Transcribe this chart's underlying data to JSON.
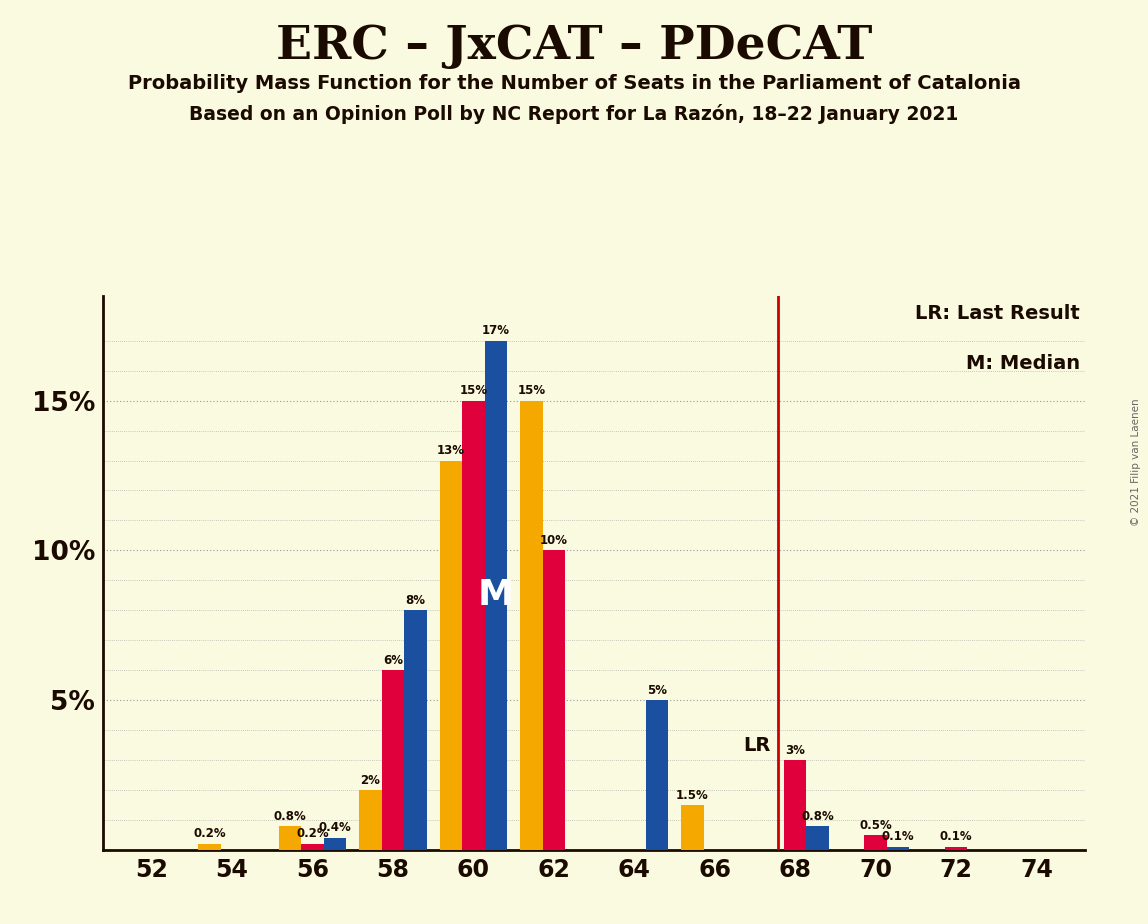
{
  "title": "ERC – JxCAT – PDeCAT",
  "subtitle1": "Probability Mass Function for the Number of Seats in the Parliament of Catalonia",
  "subtitle2": "Based on an Opinion Poll by NC Report for La Razón, 18–22 January 2021",
  "copyright": "© 2021 Filip van Laenen",
  "seats": [
    52,
    54,
    56,
    58,
    60,
    62,
    64,
    66,
    68,
    70,
    72,
    74
  ],
  "erc_values": [
    0.0,
    0.0,
    0.2,
    6.0,
    15.0,
    10.0,
    0.0,
    0.0,
    3.0,
    0.5,
    0.1,
    0.0
  ],
  "jxcat_values": [
    0.0,
    0.0,
    0.4,
    8.0,
    17.0,
    0.0,
    5.0,
    0.0,
    0.8,
    0.1,
    0.0,
    0.0
  ],
  "pdecat_values": [
    0.0,
    0.2,
    0.8,
    2.0,
    13.0,
    15.0,
    0.0,
    1.5,
    0.0,
    0.0,
    0.0,
    0.0
  ],
  "erc_color": "#E0003C",
  "jxcat_color": "#1B4FA0",
  "pdecat_color": "#F5A800",
  "median_seat_idx": 4,
  "last_result_seat": 67,
  "background_color": "#FAFAE0",
  "ylim": [
    0,
    18.5
  ],
  "legend_lr": "LR: Last Result",
  "legend_m": "M: Median",
  "lr_line_color": "#CC0000",
  "bar_width": 0.28
}
